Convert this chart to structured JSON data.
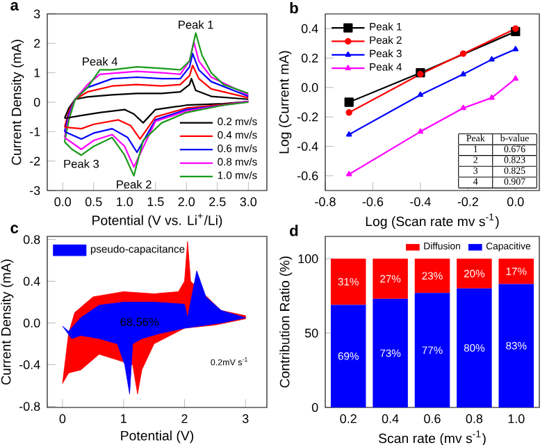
{
  "chart_data": [
    {
      "type": "line",
      "title": "a",
      "xlabel": "Potential (V vs. Li$^{+}$/Li)",
      "ylabel": "Current Density (mA)",
      "xlim": [
        -0.25,
        3.3
      ],
      "ylim": [
        -3,
        3
      ],
      "xticks": [
        {
          "value": 0,
          "label": "0.0"
        },
        0.5,
        {
          "value": 1,
          "label": "1.0"
        },
        1.5,
        {
          "value": 2,
          "label": "2.0"
        },
        2.5,
        {
          "value": 3,
          "label": "3.0"
        }
      ],
      "yticks": [
        -3,
        -2,
        -1,
        0,
        1,
        2,
        3
      ],
      "legend": "bottom right",
      "marker": "none",
      "line_style": "solid",
      "annotations": [
        {
          "text": "Peak 1",
          "x": 2.15,
          "y": 2.35
        },
        {
          "text": "Peak 4",
          "x": 0.6,
          "y": 1.1
        },
        {
          "text": "Peak 3",
          "x": 0.3,
          "y": -1.8
        },
        {
          "text": "Peak 2",
          "x": 1.15,
          "y": -2.5
        }
      ],
      "series": [
        {
          "name": "0.2 mv/s",
          "color": "#000000",
          "x": [
            0.03,
            0.1,
            0.2,
            0.4,
            0.8,
            1.2,
            1.6,
            1.9,
            2.05,
            2.08,
            2.15,
            2.4,
            3.0
          ],
          "values": [
            -0.55,
            -0.2,
            0.1,
            0.18,
            0.25,
            0.3,
            0.3,
            0.35,
            0.6,
            0.8,
            0.4,
            0.2,
            0.1
          ]
        },
        {
          "name": "0.4 mv/s",
          "color": "#ff0000",
          "x": [
            0.03,
            0.1,
            0.2,
            0.4,
            0.8,
            1.2,
            1.6,
            1.9,
            2.05,
            2.1,
            2.2,
            2.4,
            3.0
          ],
          "values": [
            -0.85,
            -0.3,
            0.1,
            0.35,
            0.55,
            0.6,
            0.55,
            0.6,
            0.9,
            1.25,
            0.8,
            0.45,
            0.15
          ]
        },
        {
          "name": "0.6 mv/s",
          "color": "#0000ff",
          "x": [
            0.03,
            0.1,
            0.2,
            0.4,
            0.8,
            1.2,
            1.6,
            1.9,
            2.05,
            2.1,
            2.2,
            2.4,
            3.0
          ],
          "values": [
            -1.0,
            -0.4,
            0.1,
            0.5,
            0.8,
            0.85,
            0.8,
            0.8,
            1.2,
            1.65,
            1.1,
            0.7,
            0.2
          ]
        },
        {
          "name": "0.8 mv/s",
          "color": "#ff00ff",
          "x": [
            0.03,
            0.1,
            0.2,
            0.4,
            0.6,
            1.2,
            1.6,
            1.9,
            2.05,
            2.12,
            2.2,
            2.4,
            3.0
          ],
          "values": [
            -1.2,
            -0.5,
            0.1,
            0.6,
            0.95,
            1.05,
            1.0,
            0.95,
            1.4,
            2.05,
            1.4,
            0.85,
            0.25
          ]
        },
        {
          "name": "1.0 mv/s",
          "color": "#1a9a1a",
          "x": [
            0.03,
            0.1,
            0.2,
            0.4,
            0.6,
            0.8,
            1.2,
            1.6,
            1.9,
            2.05,
            2.15,
            2.25,
            2.4,
            2.6,
            3.0
          ],
          "values": [
            -1.35,
            -0.6,
            0.1,
            0.5,
            1.1,
            1.1,
            1.2,
            1.15,
            1.1,
            1.4,
            2.35,
            1.6,
            1.0,
            0.6,
            0.3
          ]
        },
        {
          "color": "#000000",
          "x": [
            0.03,
            0.3,
            0.6,
            1.0,
            1.15,
            1.3,
            1.5,
            2.0,
            2.6,
            3.0
          ],
          "values": [
            -0.55,
            -0.45,
            -0.35,
            -0.25,
            -0.4,
            -0.7,
            -0.25,
            -0.1,
            -0.05,
            0.02
          ]
        },
        {
          "color": "#ff0000",
          "x": [
            0.03,
            0.3,
            0.5,
            0.9,
            1.1,
            1.25,
            1.5,
            2.0,
            2.6,
            3.0
          ],
          "values": [
            -0.85,
            -0.9,
            -0.75,
            -0.6,
            -0.8,
            -1.25,
            -0.5,
            -0.2,
            -0.08,
            0.03
          ]
        },
        {
          "color": "#0000ff",
          "x": [
            0.03,
            0.3,
            0.5,
            0.8,
            1.05,
            1.2,
            1.5,
            2.0,
            2.6,
            3.0
          ],
          "values": [
            -1.0,
            -1.25,
            -1.05,
            -0.9,
            -1.2,
            -1.7,
            -0.6,
            -0.25,
            -0.1,
            0.03
          ]
        },
        {
          "color": "#ff00ff",
          "x": [
            0.03,
            0.3,
            0.5,
            0.8,
            1.0,
            1.15,
            1.5,
            2.0,
            2.6,
            3.0
          ],
          "values": [
            -1.2,
            -1.6,
            -1.3,
            -1.1,
            -1.5,
            -2.2,
            -0.65,
            -0.3,
            -0.1,
            0.02
          ]
        },
        {
          "color": "#1a9a1a",
          "x": [
            0.03,
            0.15,
            0.3,
            0.5,
            0.8,
            1.0,
            1.15,
            1.3,
            1.6,
            2.0,
            2.6,
            3.0
          ],
          "values": [
            -1.35,
            -1.6,
            -1.8,
            -1.5,
            -1.2,
            -1.8,
            -2.5,
            -1.3,
            -0.7,
            -0.35,
            -0.1,
            0.0
          ]
        }
      ]
    },
    {
      "type": "line",
      "title": "b",
      "xlabel": "Log (Scan rate mv s$^{-1}$)",
      "ylabel": "Log (Current mA)",
      "xlim": [
        -0.8,
        0.1
      ],
      "ylim": [
        -0.7,
        0.5
      ],
      "xticks": [
        -0.8,
        -0.6,
        -0.4,
        -0.2,
        {
          "value": 0,
          "label": "0.0"
        }
      ],
      "yticks": [
        -0.6,
        -0.4,
        -0.2,
        {
          "value": 0,
          "label": "0.0"
        },
        0.2,
        0.4
      ],
      "legend": "top left",
      "line_style": "solid",
      "annotations": [
        "Peak",
        "b-value",
        "1",
        "0.676",
        "2",
        "0.823",
        "3",
        "0.825",
        "4",
        "0.907"
      ],
      "series": [
        {
          "name": "Peak 1",
          "color": "#000000",
          "marker": "square",
          "x": [
            -0.7,
            -0.4,
            0
          ],
          "values": [
            -0.1,
            0.1,
            0.38
          ]
        },
        {
          "name": "Peak 2",
          "color": "#ff0000",
          "marker": "circle",
          "x": [
            -0.7,
            -0.4,
            -0.22,
            0
          ],
          "values": [
            -0.17,
            0.09,
            0.23,
            0.4
          ]
        },
        {
          "name": "Peak 3",
          "color": "#0000ff",
          "marker": "triangle",
          "x": [
            -0.7,
            -0.4,
            -0.22,
            -0.1,
            0
          ],
          "values": [
            -0.32,
            -0.05,
            0.09,
            0.19,
            0.26
          ]
        },
        {
          "name": "Peak 4",
          "color": "#ff00ff",
          "marker": "triangle",
          "x": [
            -0.7,
            -0.4,
            -0.22,
            -0.1,
            0
          ],
          "values": [
            -0.59,
            -0.3,
            -0.14,
            -0.07,
            0.06
          ]
        }
      ]
    },
    {
      "type": "area",
      "title": "c",
      "xlabel": "Potential (V)",
      "ylabel": "Current Density (mA)",
      "xlim": [
        -0.25,
        3.35
      ],
      "ylim": [
        -0.81,
        0.83
      ],
      "xticks": [
        0,
        1,
        2,
        3
      ],
      "yticks": [
        -0.8,
        -0.4,
        {
          "value": 0,
          "label": "0.0"
        },
        0.4,
        0.8
      ],
      "legend": "top left",
      "annotations": [
        "68.56%",
        "0.2mV s$^{-1}$"
      ],
      "series": [
        {
          "color": "#ff0000",
          "x": [
            0.0,
            0.1,
            0.2,
            0.5,
            1.0,
            1.5,
            1.9,
            2.0,
            2.05,
            2.1,
            2.3,
            2.6,
            3.0,
            3.0,
            2.5,
            2.0,
            1.5,
            1.3,
            1.23,
            1.15,
            1.0,
            0.6,
            0.3,
            0.1,
            0.0
          ],
          "values": [
            -0.58,
            -0.1,
            0.1,
            0.25,
            0.3,
            0.28,
            0.3,
            0.4,
            0.78,
            0.4,
            null,
            0.12,
            0.07,
            0.04,
            -0.02,
            -0.05,
            -0.2,
            -0.45,
            -0.68,
            -0.4,
            null,
            -0.3,
            -0.45,
            -0.48,
            -0.58
          ]
        },
        {
          "name": "pseudo-capacitance",
          "color": "#0000ff",
          "x": [
            0.0,
            0.1,
            0.3,
            0.6,
            1.0,
            1.5,
            2.0,
            2.05,
            2.15,
            2.2,
            2.35,
            2.6,
            3.0,
            2.6,
            2.0,
            1.6,
            1.3,
            1.15,
            1.1,
            1.02,
            0.9,
            0.6,
            0.3,
            0.15,
            0.0
          ],
          "values": [
            -0.03,
            -0.08,
            0.05,
            0.17,
            0.2,
            0.2,
            0.18,
            0.05,
            0.35,
            0.5,
            0.25,
            0.12,
            0.05,
            0.0,
            -0.05,
            -0.1,
            -0.15,
            -0.2,
            -0.68,
            -0.4,
            -0.2,
            -0.15,
            -0.12,
            -0.15,
            -0.03
          ]
        }
      ]
    },
    {
      "type": "bar",
      "title": "d",
      "xlabel": "Scan rate (mv s$^{-1}$)",
      "ylabel": "Contribution Ratio (%)",
      "ylim": [
        0,
        115
      ],
      "yticks": [
        0,
        50,
        100
      ],
      "categories": [
        "0.2",
        "0.4",
        "0.6",
        "0.8",
        "1.0"
      ],
      "stacked": true,
      "legend": "top right",
      "series": [
        {
          "name": "Capacitive",
          "color": "#0000ff",
          "values": [
            69,
            73,
            77,
            80,
            83
          ],
          "value_labels": [
            "69%",
            "73%",
            "77%",
            "80%",
            "83%"
          ]
        },
        {
          "name": "Diffusion",
          "color": "#ff0000",
          "values": [
            31,
            27,
            23,
            20,
            17
          ],
          "value_labels": [
            "31%",
            "27%",
            "23%",
            "20%",
            "17%"
          ]
        }
      ]
    }
  ]
}
